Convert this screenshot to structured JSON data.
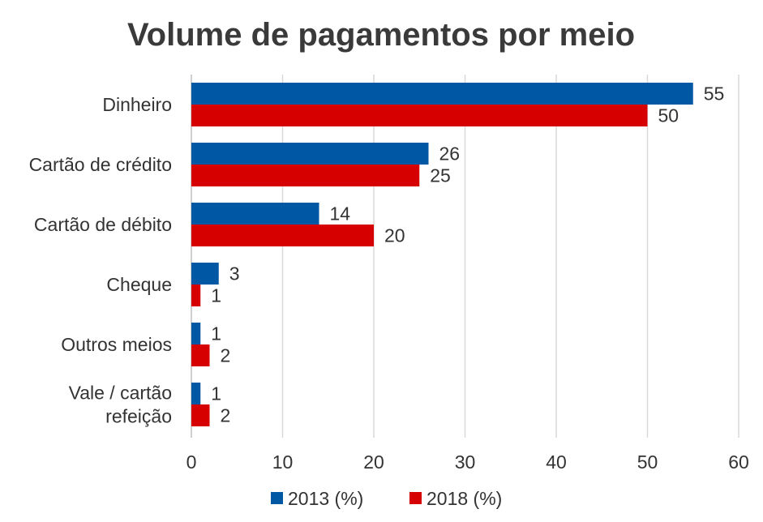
{
  "chart_data": {
    "type": "bar",
    "orientation": "horizontal",
    "title": "Volume de pagamentos por meio",
    "categories": [
      [
        "Dinheiro"
      ],
      [
        "Cartão de crédito"
      ],
      [
        "Cartão de débito"
      ],
      [
        "Cheque"
      ],
      [
        "Outros meios"
      ],
      [
        "Vale / cartão",
        "refeição"
      ]
    ],
    "series": [
      {
        "name": "2013 (%)",
        "color": "#0057a3",
        "values": [
          55,
          26,
          14,
          3,
          1,
          1
        ]
      },
      {
        "name": "2018 (%)",
        "color": "#d60000",
        "values": [
          50,
          25,
          20,
          1,
          2,
          2
        ]
      }
    ],
    "xlim": [
      0,
      60
    ],
    "xticks": [
      0,
      10,
      20,
      30,
      40,
      50,
      60
    ],
    "grid": true,
    "legend": "bottom-center"
  }
}
